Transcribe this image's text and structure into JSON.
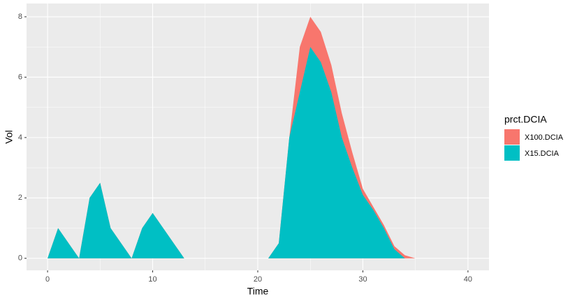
{
  "chart_data": {
    "type": "area",
    "x_label": "Time",
    "y_label": "Vol",
    "legend_title": "prct.DCIA",
    "x": [
      0,
      1,
      2,
      3,
      4,
      5,
      6,
      7,
      8,
      9,
      10,
      11,
      12,
      13,
      14,
      15,
      16,
      17,
      18,
      19,
      20,
      21,
      22,
      23,
      24,
      25,
      26,
      27,
      28,
      29,
      30,
      31,
      32,
      33,
      34,
      35
    ],
    "series": [
      {
        "name": "X100.DCIA",
        "color": "#f8766d",
        "values": [
          0,
          1,
          0.5,
          0,
          2,
          2.5,
          1,
          0.5,
          0,
          1,
          1.5,
          1,
          0.5,
          0,
          0,
          0,
          0,
          0,
          0,
          0,
          0,
          0,
          0.5,
          4,
          7,
          8,
          7.5,
          6.4,
          4.8,
          3.5,
          2.3,
          1.7,
          1.1,
          0.4,
          0.1,
          0
        ]
      },
      {
        "name": "X15.DCIA",
        "color": "#00bfc4",
        "values": [
          0,
          1,
          0.5,
          0,
          2,
          2.5,
          1,
          0.5,
          0,
          1,
          1.5,
          1,
          0.5,
          0,
          0,
          0,
          0,
          0,
          0,
          0,
          0,
          0,
          0.5,
          4,
          5.5,
          7,
          6.5,
          5.5,
          4,
          3,
          2.1,
          1.6,
          1,
          0.3,
          0,
          0
        ]
      }
    ],
    "xlim": [
      -2,
      42
    ],
    "xticks": [
      0,
      10,
      20,
      30,
      40
    ],
    "ylim": [
      -0.4,
      8.44
    ],
    "yticks": [
      0,
      2,
      4,
      6,
      8
    ],
    "grid": true,
    "legend_position": "right"
  }
}
